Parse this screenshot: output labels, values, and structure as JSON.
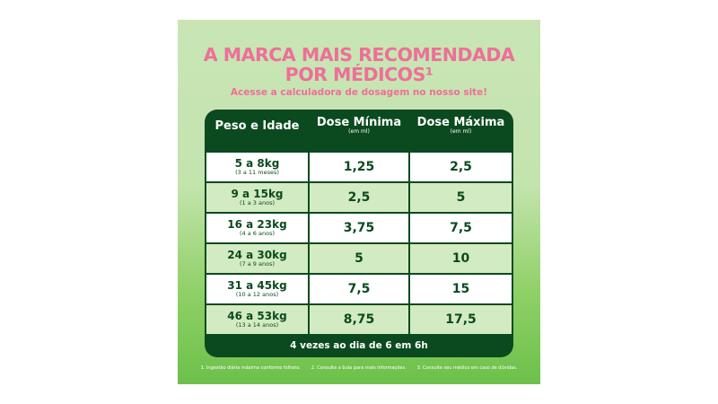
{
  "title_line1": "A MARCA MAIS RECOMENDADA",
  "title_line2": "POR MÉDICOS¹",
  "subtitle": "Acesse a calculadora de dosagem no nosso site!",
  "headers": [
    {
      "label": "Peso e Idade",
      "unit": ""
    },
    {
      "label": "Dose Mínima",
      "unit": "(em ml)"
    },
    {
      "label": "Dose Máxima",
      "unit": "(em ml)"
    }
  ],
  "rows": [
    {
      "weight": "5 a 8kg",
      "age": "(3 a 11 meses)",
      "min": "1,25",
      "max": "2,5"
    },
    {
      "weight": "9 a 15kg",
      "age": "(1 a 3 anos)",
      "min": "2,5",
      "max": "5"
    },
    {
      "weight": "16 a 23kg",
      "age": "(4 a 6 anos)",
      "min": "3,75",
      "max": "7,5"
    },
    {
      "weight": "24 a 30kg",
      "age": "(7 a 9 anos)",
      "min": "5",
      "max": "10"
    },
    {
      "weight": "31 a 45kg",
      "age": "(10 a 12 anos)",
      "min": "7,5",
      "max": "15"
    },
    {
      "weight": "46 a 53kg",
      "age": "(13 a 14 anos)",
      "min": "8,75",
      "max": "17,5"
    }
  ],
  "frequency": "4 vezes ao dia de 6 em 6h",
  "notes": [
    "1. Ingestão diária máxima conforme folheto.",
    "2. Consulte a bula para mais informações.",
    "3. Consulte seu médico em caso de dúvidas."
  ]
}
